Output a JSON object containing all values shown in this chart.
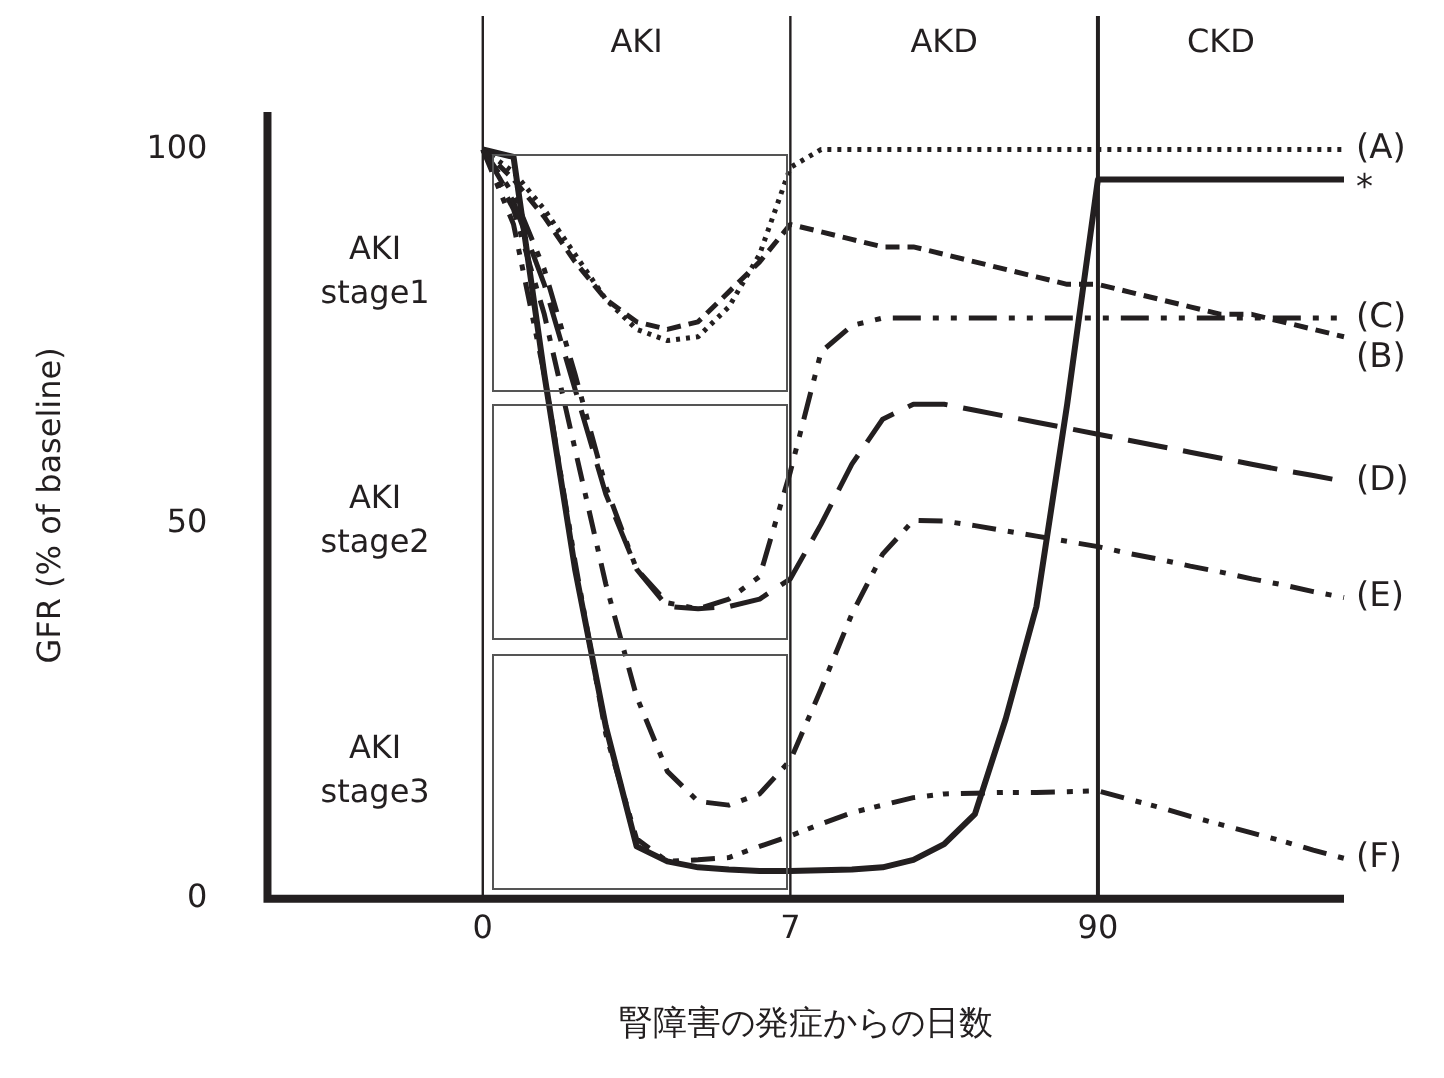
{
  "chart_data": {
    "type": "line",
    "xlabel": "腎障害の発症からの日数",
    "ylabel": "GFR (% of baseline)",
    "categories": [
      null,
      null,
      null,
      null,
      null,
      null,
      null,
      "0",
      null,
      null,
      null,
      null,
      null,
      null,
      null,
      null,
      null,
      "7",
      null,
      null,
      null,
      null,
      null,
      null,
      null,
      null,
      null,
      "90",
      null,
      null,
      null,
      null,
      null,
      null,
      null,
      null
    ],
    "ylim": [
      0,
      105
    ],
    "yticks": [
      0,
      50,
      100
    ],
    "grid": false,
    "legend": false,
    "marker": "none",
    "ref_lines": [
      {
        "axis": "x",
        "value": "0"
      },
      {
        "axis": "x",
        "value": "7"
      },
      {
        "axis": "x",
        "value": "90"
      }
    ],
    "annotations": [
      "AKI",
      "AKD",
      "CKD",
      "AKI stage1",
      "AKI stage2",
      "AKI stage3"
    ],
    "series": [
      {
        "name": "(A)",
        "color": "#231f20",
        "line_style": "dotted",
        "values": [
          null,
          null,
          null,
          null,
          null,
          null,
          null,
          100,
          97,
          92,
          86,
          80,
          76,
          74.5,
          75,
          79,
          86,
          97.6,
          100,
          100,
          100,
          100,
          100,
          100,
          100,
          100,
          100,
          100,
          100,
          100,
          100,
          100,
          100,
          100,
          100,
          100
        ]
      },
      {
        "name": "(B)",
        "color": "#231f20",
        "line_style": "dashed",
        "values": [
          null,
          null,
          null,
          null,
          null,
          null,
          null,
          100,
          96,
          91,
          85,
          80,
          77,
          76,
          77,
          81,
          85,
          90,
          89,
          88,
          87,
          87,
          86,
          85,
          84,
          83,
          82,
          82,
          81,
          80,
          79,
          78,
          78,
          77,
          76,
          75
        ]
      },
      {
        "name": "(C)",
        "color": "#231f20",
        "line_style": "dashed",
        "values": [
          null,
          null,
          null,
          null,
          null,
          null,
          null,
          100,
          94,
          84,
          70,
          55,
          44,
          39.5,
          38.7,
          40,
          43,
          57,
          73,
          76.5,
          77.5,
          77.5,
          77.5,
          77.5,
          77.5,
          77.5,
          77.5,
          77.5,
          77.5,
          77.5,
          77.5,
          77.5,
          77.5,
          77.5,
          77.5,
          77.5
        ]
      },
      {
        "name": "(D)",
        "color": "#231f20",
        "line_style": "dashed",
        "values": [
          null,
          null,
          null,
          null,
          null,
          null,
          null,
          100,
          93,
          82,
          68,
          54,
          44,
          39,
          38.7,
          39,
          40,
          42.7,
          50,
          58,
          64,
          66,
          66,
          65.2,
          64.4,
          63.6,
          62.8,
          62,
          61.2,
          60.4,
          59.6,
          58.8,
          58,
          57.2,
          56.5,
          55.7
        ]
      },
      {
        "name": "(E)",
        "color": "#231f20",
        "line_style": "dashed",
        "values": [
          null,
          null,
          null,
          null,
          null,
          null,
          null,
          100,
          92,
          78,
          60,
          42,
          27,
          17,
          13,
          12.5,
          14,
          18.5,
          28,
          38,
          46,
          50.5,
          50.4,
          49.8,
          49.1,
          48.4,
          47.7,
          47,
          46.1,
          45.3,
          44.4,
          43.6,
          42.7,
          41.9,
          41,
          40.2
        ]
      },
      {
        "name": "(F)",
        "color": "#231f20",
        "line_style": "dashed",
        "values": [
          null,
          null,
          null,
          null,
          null,
          null,
          null,
          100,
          90,
          70,
          45,
          22,
          8,
          5,
          5.2,
          5.5,
          7,
          8.4,
          10,
          11.5,
          12.5,
          13.5,
          14,
          14.1,
          14.2,
          14.2,
          14.3,
          14.4,
          13.3,
          12.2,
          11,
          9.9,
          8.8,
          7.7,
          6.5,
          5.4
        ]
      },
      {
        "name": "*",
        "color": "#231f20",
        "line_style": "solid",
        "values": [
          null,
          null,
          null,
          null,
          null,
          null,
          null,
          100,
          99,
          70,
          44,
          23,
          7,
          5,
          4.2,
          3.9,
          3.7,
          3.7,
          3.8,
          3.9,
          4.2,
          5.2,
          7.3,
          11.3,
          24,
          39,
          66,
          96,
          96,
          96,
          96,
          96,
          96,
          96,
          96,
          96
        ]
      }
    ]
  }
}
